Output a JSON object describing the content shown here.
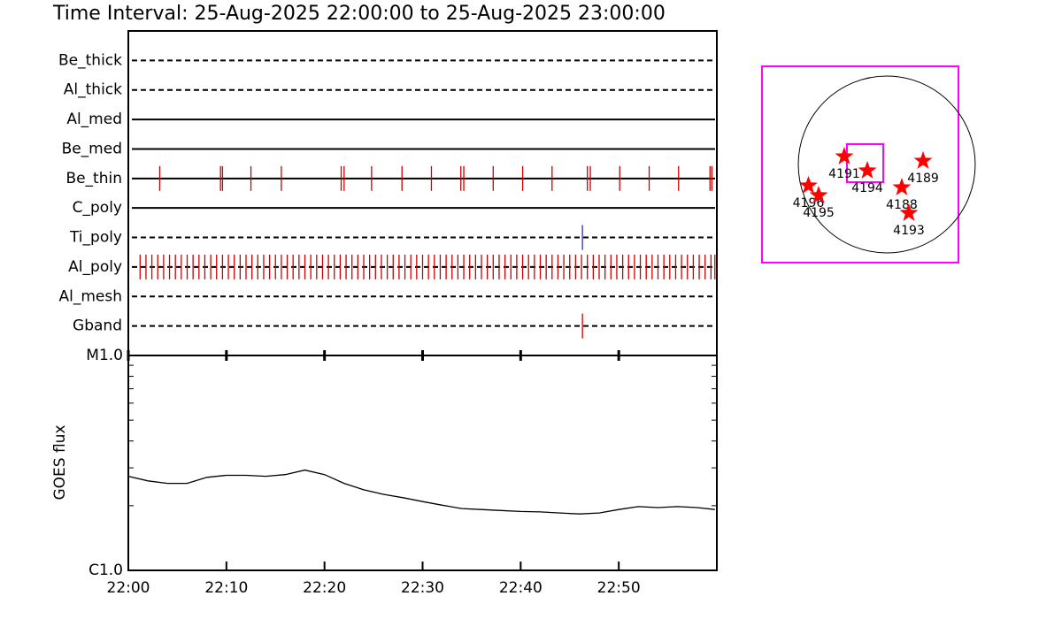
{
  "chart_data": [
    {
      "type": "events",
      "title": "Time Interval: 25-Aug-2025 22:00:00 to 25-Aug-2025 23:00:00",
      "xlim": [
        0,
        60
      ],
      "rows": [
        {
          "name": "Be_thick",
          "style": "dashed",
          "color": "#cc0000",
          "events": []
        },
        {
          "name": "Al_thick",
          "style": "dashed",
          "color": "#cc0000",
          "events": []
        },
        {
          "name": "Al_med",
          "style": "solid",
          "color": "#cc0000",
          "events": []
        },
        {
          "name": "Be_med",
          "style": "solid",
          "color": "#cc0000",
          "events": []
        },
        {
          "name": "Be_thin",
          "style": "solid",
          "color": "#cc0000",
          "events": [
            3.2,
            9.4,
            9.6,
            12.5,
            15.6,
            21.7,
            22.0,
            24.8,
            27.9,
            30.9,
            33.9,
            34.2,
            37.2,
            40.2,
            43.2,
            46.8,
            47.1,
            50.1,
            53.1,
            56.1,
            59.3,
            59.5
          ]
        },
        {
          "name": "C_poly",
          "style": "solid",
          "color": "#cc0000",
          "events": []
        },
        {
          "name": "Ti_poly",
          "style": "dashed",
          "color": "#333399",
          "events": [
            46.3
          ]
        },
        {
          "name": "Al_poly",
          "style": "dashed",
          "color": "#cc0000",
          "events": [
            1.2,
            1.8,
            2.4,
            3.0,
            3.6,
            4.2,
            4.8,
            5.4,
            6.0,
            6.6,
            7.2,
            7.8,
            8.4,
            9.0,
            9.6,
            10.2,
            10.8,
            11.4,
            12.0,
            12.6,
            13.2,
            13.8,
            14.4,
            15.0,
            15.6,
            16.2,
            16.8,
            17.4,
            18.0,
            18.6,
            19.2,
            19.8,
            20.4,
            21.0,
            21.6,
            22.2,
            22.8,
            23.4,
            24.0,
            24.6,
            25.2,
            25.8,
            26.4,
            27.0,
            27.6,
            28.2,
            28.8,
            29.4,
            30.0,
            30.6,
            31.2,
            31.8,
            32.4,
            33.0,
            33.6,
            34.2,
            34.8,
            35.4,
            36.0,
            36.6,
            37.2,
            37.8,
            38.4,
            39.0,
            39.6,
            40.2,
            40.8,
            41.4,
            42.0,
            42.6,
            43.2,
            43.8,
            44.4,
            45.0,
            45.6,
            46.2,
            46.8,
            47.4,
            48.0,
            48.6,
            49.2,
            49.8,
            50.4,
            51.0,
            51.6,
            52.2,
            52.8,
            53.4,
            54.0,
            54.6,
            55.2,
            55.8,
            56.4,
            57.0,
            57.6,
            58.2,
            58.8,
            59.4,
            59.8
          ]
        },
        {
          "name": "Al_mesh",
          "style": "dashed",
          "color": "#cc0000",
          "events": []
        },
        {
          "name": "Gband",
          "style": "dashed",
          "color": "#cc0000",
          "events": [
            46.3
          ]
        }
      ]
    },
    {
      "type": "line",
      "ylabel": "GOES flux",
      "log": true,
      "color": "#000000",
      "xlim": [
        0,
        60
      ],
      "xticks": [
        {
          "value": 0,
          "label": "22:00"
        },
        {
          "value": 10,
          "label": "22:10"
        },
        {
          "value": 20,
          "label": "22:20"
        },
        {
          "value": 30,
          "label": "22:30"
        },
        {
          "value": 40,
          "label": "22:40"
        },
        {
          "value": 50,
          "label": "22:50"
        }
      ],
      "ylim": [
        1e-06,
        1e-05
      ],
      "yticks": [
        {
          "value": 1e-06,
          "label": "C1.0"
        },
        {
          "value": 1e-05,
          "label": "M1.0"
        }
      ],
      "yminor": [
        2e-06,
        3e-06,
        4e-06,
        5e-06,
        6e-06,
        7e-06,
        8e-06,
        9e-06
      ],
      "x": [
        0,
        2,
        4,
        6,
        8,
        10,
        12,
        14,
        16,
        18,
        20,
        22,
        24,
        26,
        28,
        30,
        32,
        34,
        36,
        38,
        40,
        42,
        44,
        46,
        48,
        50,
        52,
        54,
        56,
        58,
        59.8
      ],
      "values": [
        2.74e-06,
        2.61e-06,
        2.54e-06,
        2.54e-06,
        2.71e-06,
        2.77e-06,
        2.77e-06,
        2.74e-06,
        2.79e-06,
        2.93e-06,
        2.79e-06,
        2.54e-06,
        2.37e-06,
        2.26e-06,
        2.18e-06,
        2.09e-06,
        2.01e-06,
        1.94e-06,
        1.92e-06,
        1.9e-06,
        1.88e-06,
        1.87e-06,
        1.85e-06,
        1.83e-06,
        1.85e-06,
        1.92e-06,
        1.98e-06,
        1.96e-06,
        1.98e-06,
        1.96e-06,
        1.92e-06
      ]
    },
    {
      "type": "map",
      "xlim": [
        -1354,
        778
      ],
      "ylim": [
        -1066,
        1066
      ],
      "disk_radius": 960,
      "box_color": "#ff00ff",
      "star_color": "#ff0000",
      "fov": {
        "x": [
          -432,
          -38
        ],
        "y": [
          -192,
          221
        ]
      },
      "regions": [
        {
          "label": "4191",
          "x": -461,
          "y": 86
        },
        {
          "label": "4194",
          "x": -211,
          "y": -67
        },
        {
          "label": "4189",
          "x": 394,
          "y": 38
        },
        {
          "label": "4188",
          "x": 163,
          "y": -250
        },
        {
          "label": "4193",
          "x": 240,
          "y": -528
        },
        {
          "label": "4196",
          "x": -850,
          "y": -230
        },
        {
          "label": "4195",
          "x": -739,
          "y": -336
        }
      ]
    }
  ]
}
